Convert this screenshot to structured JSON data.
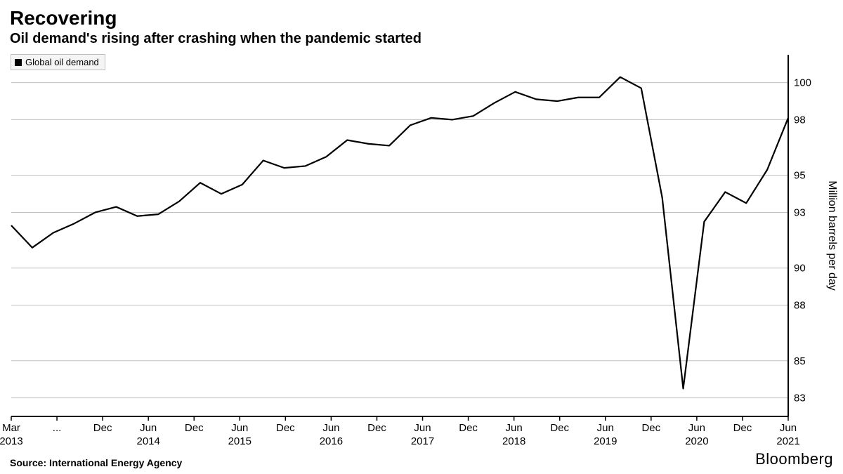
{
  "title": "Recovering",
  "subtitle": "Oil demand's rising after crashing when the pandemic started",
  "source": "Source: International Energy Agency",
  "brand": "Bloomberg",
  "legend": {
    "series_label": "Global oil demand",
    "swatch_color": "#000000"
  },
  "chart": {
    "type": "line",
    "y_axis": {
      "title": "Million barrels per day",
      "ylim": [
        82,
        101.5
      ],
      "ticks": [
        83,
        85,
        88,
        90,
        93,
        95,
        98,
        100
      ],
      "tick_fontsize": 15,
      "title_fontsize": 16,
      "side": "right",
      "grid": true,
      "grid_color": "#bfbfbf"
    },
    "x_axis": {
      "labels_top": [
        "Mar",
        "...",
        "Dec",
        "Jun",
        "Dec",
        "Jun",
        "Dec",
        "Jun",
        "Dec",
        "Jun",
        "Dec",
        "Jun",
        "Dec",
        "Jun",
        "Dec",
        "Jun",
        "Dec",
        "Jun"
      ],
      "labels_years": [
        "2013",
        "",
        "",
        "2014",
        "",
        "2015",
        "",
        "2016",
        "",
        "2017",
        "",
        "2018",
        "",
        "2019",
        "",
        "2020",
        "",
        "2021"
      ],
      "tick_fontsize": 15
    },
    "line": {
      "color": "#000000",
      "width": 2.2,
      "values": [
        92.3,
        91.1,
        91.9,
        92.4,
        93.0,
        93.3,
        92.8,
        92.9,
        93.6,
        94.6,
        94.0,
        94.5,
        95.8,
        95.4,
        95.5,
        96.0,
        96.9,
        96.7,
        96.6,
        97.7,
        98.1,
        98.0,
        98.2,
        98.9,
        99.5,
        99.1,
        99.0,
        99.2,
        99.2,
        100.3,
        99.7,
        93.8,
        83.5,
        92.5,
        94.1,
        93.5,
        95.3,
        98.1
      ]
    },
    "background_color": "#ffffff",
    "frame_color": "#000000"
  }
}
